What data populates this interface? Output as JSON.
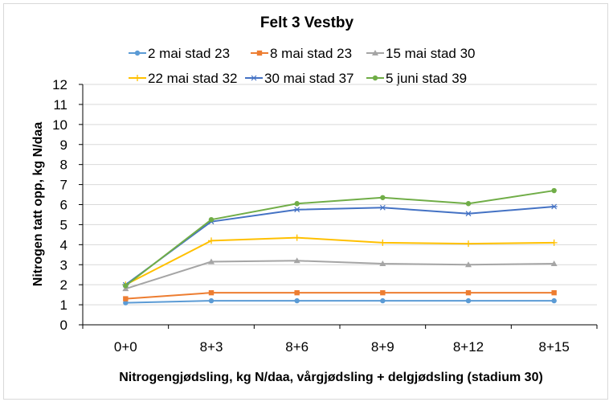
{
  "chart_data": {
    "type": "line",
    "title": "Felt 3 Vestby",
    "xlabel": "Nitrogengjødsling, kg N/daa, vårgjødsling + delgjødsling (stadium 30)",
    "ylabel": "Nitrogen tatt opp, kg N/daa",
    "categories": [
      "0+0",
      "8+3",
      "8+6",
      "8+9",
      "8+12",
      "8+15"
    ],
    "ylim": [
      0,
      12
    ],
    "yticks": [
      "0",
      "1",
      "2",
      "3",
      "4",
      "5",
      "6",
      "7",
      "8",
      "9",
      "10",
      "11",
      "12"
    ],
    "grid": true,
    "legend_position": "top",
    "series": [
      {
        "name": "2 mai stad 23",
        "color": "#5b9bd5",
        "marker": "circle",
        "values": [
          1.1,
          1.2,
          1.2,
          1.2,
          1.2,
          1.2
        ]
      },
      {
        "name": "8 mai stad 23",
        "color": "#ed7d31",
        "marker": "square",
        "values": [
          1.3,
          1.6,
          1.6,
          1.6,
          1.6,
          1.6
        ]
      },
      {
        "name": "15 mai stad 30",
        "color": "#a5a5a5",
        "marker": "triangle",
        "values": [
          1.8,
          3.15,
          3.2,
          3.05,
          3.0,
          3.05
        ]
      },
      {
        "name": "22 mai stad 32",
        "color": "#ffc000",
        "marker": "plus",
        "values": [
          2.0,
          4.2,
          4.35,
          4.1,
          4.05,
          4.1
        ]
      },
      {
        "name": "30 mai stad 37",
        "color": "#4472c4",
        "marker": "star",
        "values": [
          2.0,
          5.15,
          5.75,
          5.85,
          5.55,
          5.9
        ]
      },
      {
        "name": "5 juni stad 39",
        "color": "#70ad47",
        "marker": "circle",
        "values": [
          1.95,
          5.25,
          6.05,
          6.35,
          6.05,
          6.7
        ]
      }
    ]
  }
}
